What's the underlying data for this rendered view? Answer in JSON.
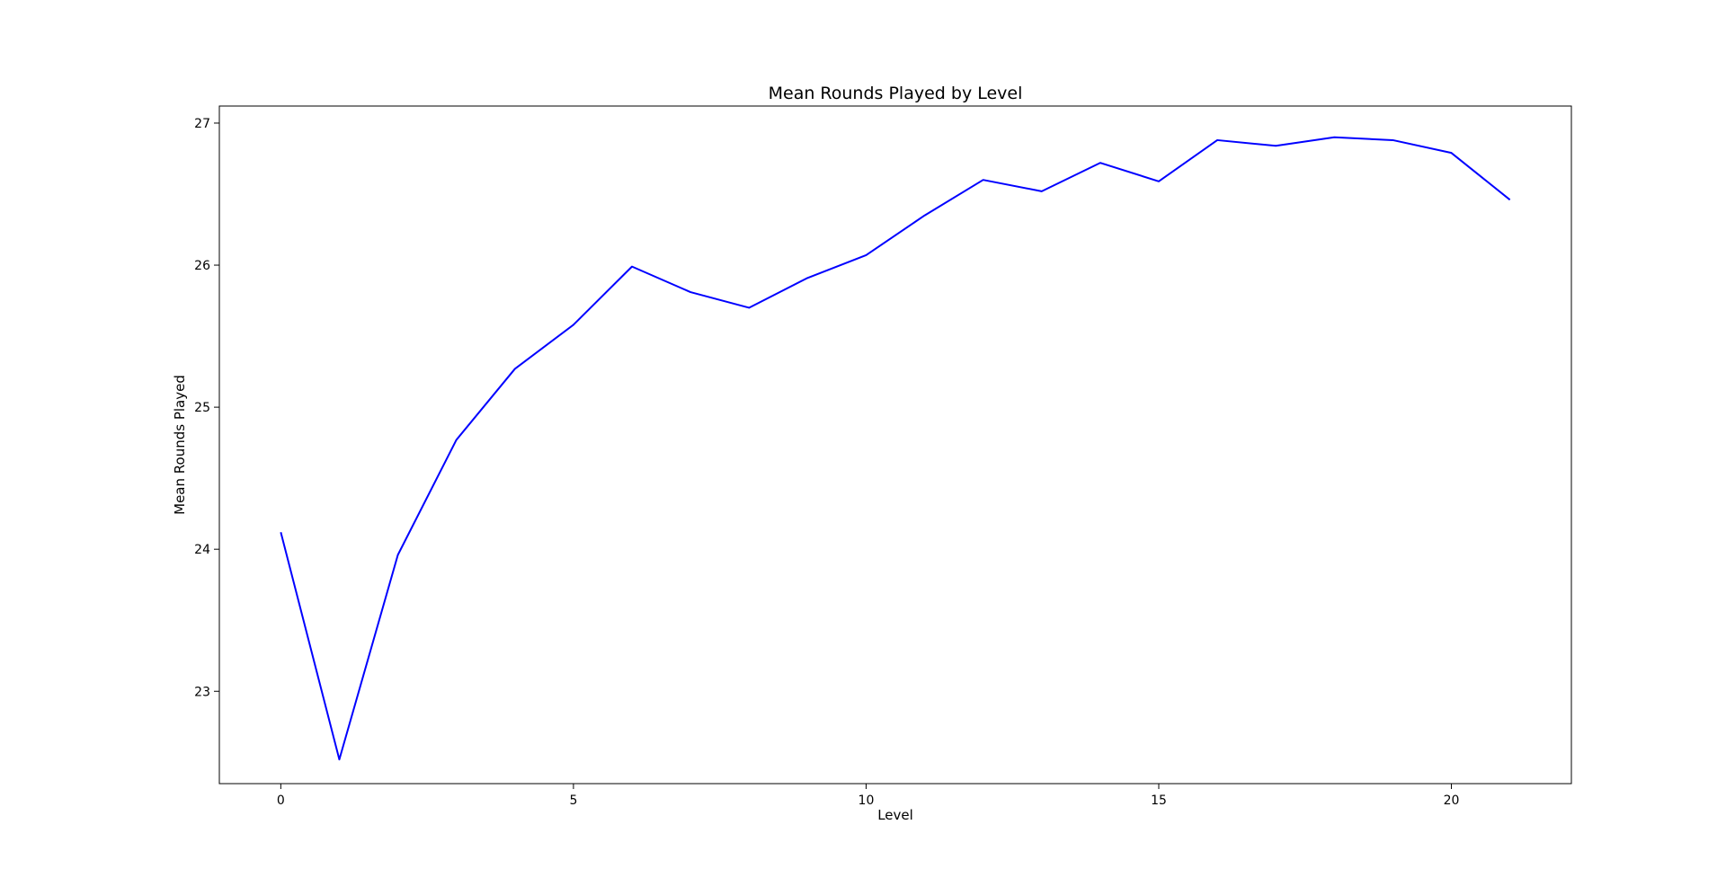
{
  "chart_data": {
    "type": "line",
    "title": "Mean Rounds Played by Level",
    "xlabel": "Level",
    "ylabel": "Mean Rounds Played",
    "xlim": [
      -1.05,
      22.05
    ],
    "ylim": [
      22.35,
      27.12
    ],
    "xticks": [
      0,
      5,
      10,
      15,
      20
    ],
    "yticks": [
      23,
      24,
      25,
      26,
      27
    ],
    "grid": false,
    "series": [
      {
        "color": "#0000ff",
        "x": [
          0,
          1,
          2,
          3,
          4,
          5,
          6,
          7,
          8,
          9,
          10,
          11,
          12,
          13,
          14,
          15,
          16,
          17,
          18,
          19,
          20,
          21
        ],
        "y": [
          24.12,
          22.52,
          23.96,
          24.77,
          25.27,
          25.58,
          25.99,
          25.81,
          25.7,
          25.91,
          26.07,
          26.35,
          26.6,
          26.52,
          26.72,
          26.59,
          26.88,
          26.84,
          26.9,
          26.88,
          26.79,
          26.46
        ]
      }
    ]
  }
}
